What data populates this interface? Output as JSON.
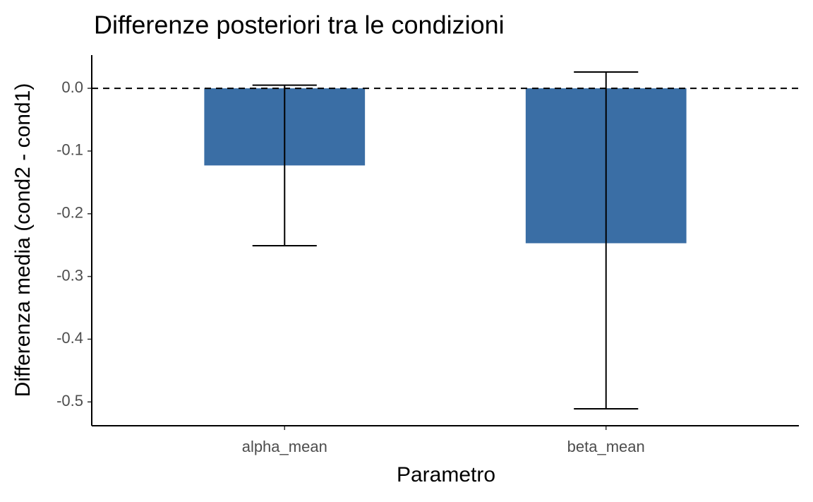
{
  "chart_data": {
    "type": "bar",
    "title": "Differenze posteriori tra le condizioni",
    "x_label": "Parametro",
    "y_label": "Differenza media (cond2 - cond1)",
    "categories": [
      "alpha_mean",
      "beta_mean"
    ],
    "values": [
      -0.123,
      -0.247
    ],
    "lower": [
      -0.251,
      -0.511
    ],
    "upper": [
      0.005,
      0.026
    ],
    "color": "#3a6ea5",
    "hline": 0,
    "ylim": [
      -0.538,
      0.053
    ],
    "yticks": [
      {
        "value": 0,
        "label": "0.0"
      },
      -0.1,
      -0.2,
      -0.3,
      -0.4,
      -0.5
    ],
    "grid": false
  }
}
